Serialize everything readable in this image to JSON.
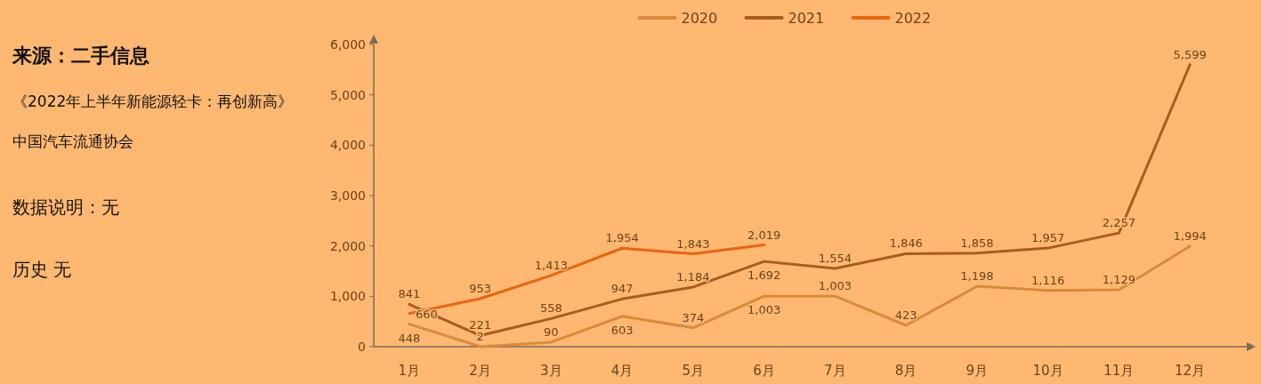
{
  "chart_data": {
    "type": "line",
    "categories": [
      "1月",
      "2月",
      "3月",
      "4月",
      "5月",
      "6月",
      "7月",
      "8月",
      "9月",
      "10月",
      "11月",
      "12月"
    ],
    "series": [
      {
        "name": "2020",
        "color": "#d98a3a",
        "values": [
          448,
          2,
          90,
          603,
          374,
          1003,
          1003,
          423,
          1198,
          1116,
          1129,
          1994
        ],
        "value_labels": [
          "448",
          "2",
          "90",
          "603",
          "374",
          "1,003",
          "1,003",
          "423",
          "1,198",
          "1,116",
          "1,129",
          "1,994"
        ]
      },
      {
        "name": "2021",
        "color": "#a85d1e",
        "values": [
          841,
          221,
          558,
          947,
          1184,
          1692,
          1554,
          1846,
          1858,
          1957,
          2257,
          5599
        ],
        "value_labels": [
          "841",
          "221",
          "558",
          "947",
          "1,184",
          "1,692",
          "1,554",
          "1,846",
          "1,858",
          "1,957",
          "2,257",
          "5,599"
        ]
      },
      {
        "name": "2022",
        "color": "#e8650f",
        "values": [
          660,
          953,
          1413,
          1954,
          1843,
          2019,
          null,
          null,
          null,
          null,
          null,
          null
        ],
        "value_labels": [
          "660",
          "953",
          "1,413",
          "1,954",
          "1,843",
          "2,019",
          null,
          null,
          null,
          null,
          null,
          null
        ]
      }
    ],
    "ylim": [
      0,
      6000
    ],
    "yticks": [
      0,
      {
        "value": 1000,
        "label": "1,000"
      },
      {
        "value": 2000,
        "label": "2,000"
      },
      {
        "value": 3000,
        "label": "3,000"
      },
      {
        "value": 4000,
        "label": "4,000"
      },
      {
        "value": 5000,
        "label": "5,000"
      },
      {
        "value": 6000,
        "label": "6,000"
      }
    ],
    "legend": "top",
    "marker": "none",
    "line_style": "solid",
    "annotations": [
      "来源：二手信息",
      "《2022年上半年新能源轻卡：再创新高》",
      "中国汽车流通协会",
      "数据说明：无",
      "历史 无"
    ]
  }
}
